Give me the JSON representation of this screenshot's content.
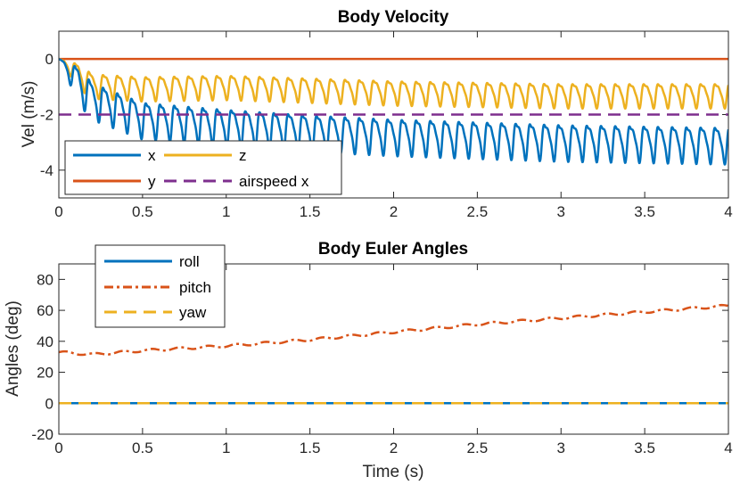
{
  "chart_data": [
    {
      "type": "line",
      "title": "Body Velocity",
      "xlabel": "",
      "ylabel": "Vel (m/s)",
      "xlim": [
        0,
        4
      ],
      "ylim": [
        -5,
        1
      ],
      "xticks": [
        0,
        0.5,
        1,
        1.5,
        2,
        2.5,
        3,
        3.5,
        4
      ],
      "xtick_labels": [
        "0",
        "0.5",
        "1",
        "1.5",
        "2",
        "2.5",
        "3",
        "3.5",
        "4"
      ],
      "yticks": [
        0,
        -2,
        -4
      ],
      "ytick_labels": [
        "0",
        "-2",
        "-4"
      ],
      "legend_position": "bottom-left",
      "series": [
        {
          "name": "x",
          "color": "#0072BD",
          "style": "solid",
          "x": [
            0,
            0.2,
            0.5,
            1.0,
            1.5,
            2.0,
            2.5,
            3.0,
            3.5,
            4.0
          ],
          "y_mean": [
            0,
            -1.4,
            -2.1,
            -2.35,
            -2.55,
            -2.7,
            -2.8,
            -2.9,
            -2.95,
            -3.0
          ],
          "oscillation_amplitude": 0.75,
          "oscillation_period_s": 0.085
        },
        {
          "name": "y",
          "color": "#D95319",
          "style": "solid",
          "x": [
            0,
            4
          ],
          "y": [
            0,
            0
          ]
        },
        {
          "name": "z",
          "color": "#EDB120",
          "style": "solid",
          "x": [
            0,
            0.2,
            0.5,
            1.0,
            1.5,
            2.0,
            2.5,
            3.0,
            3.5,
            4.0
          ],
          "y_mean": [
            0,
            -0.9,
            -1.0,
            -0.95,
            -1.05,
            -1.15,
            -1.2,
            -1.25,
            -1.25,
            -1.25
          ],
          "oscillation_amplitude": 0.5,
          "oscillation_period_s": 0.085
        },
        {
          "name": "airspeed x",
          "color": "#7E2F8E",
          "style": "dashed",
          "x": [
            0,
            4
          ],
          "y": [
            -2,
            -2
          ]
        }
      ]
    },
    {
      "type": "line",
      "title": "Body Euler Angles",
      "xlabel": "Time (s)",
      "ylabel": "Angles (deg)",
      "xlim": [
        0,
        4
      ],
      "ylim": [
        -20,
        90
      ],
      "xticks": [
        0,
        0.5,
        1,
        1.5,
        2,
        2.5,
        3,
        3.5,
        4
      ],
      "xtick_labels": [
        "0",
        "0.5",
        "1",
        "1.5",
        "2",
        "2.5",
        "3",
        "3.5",
        "4"
      ],
      "yticks": [
        80,
        60,
        40,
        20,
        0,
        -20
      ],
      "ytick_labels": [
        "80",
        "60",
        "40",
        "20",
        "0",
        "-20"
      ],
      "legend_position": "top-left",
      "series": [
        {
          "name": "roll",
          "color": "#0072BD",
          "style": "solid",
          "x": [
            0,
            4
          ],
          "y": [
            0,
            0
          ]
        },
        {
          "name": "pitch",
          "color": "#D95319",
          "style": "dashdot",
          "x": [
            0,
            0.2,
            0.5,
            1.0,
            1.5,
            2.0,
            2.5,
            3.0,
            3.5,
            4.0
          ],
          "y": [
            33,
            31.5,
            34,
            37,
            41,
            46,
            51,
            55,
            59,
            63
          ]
        },
        {
          "name": "yaw",
          "color": "#EDB120",
          "style": "dashed",
          "x": [
            0,
            4
          ],
          "y": [
            0,
            0
          ]
        }
      ]
    }
  ]
}
